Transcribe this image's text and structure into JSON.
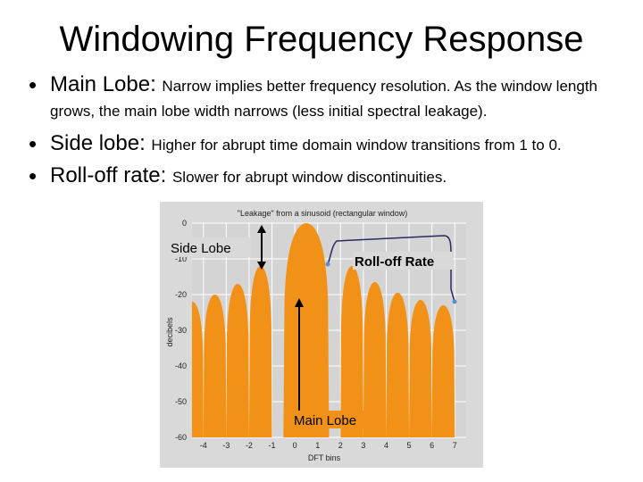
{
  "slide": {
    "title": "Windowing Frequency Response",
    "bullets": [
      {
        "term": "Main Lobe: ",
        "desc": "Narrow implies better frequency resolution. As the window length grows, the main lobe width narrows (less initial spectral leakage)."
      },
      {
        "term": "Side lobe: ",
        "desc": "Higher for abrupt time domain window transitions from 1 to 0."
      },
      {
        "term": "Roll-off rate: ",
        "desc": "Slower for abrupt window discontinuities."
      }
    ],
    "bullet_glyph": "•"
  },
  "chart_data": {
    "type": "area",
    "title": "\"Leakage\" from a sinusoid (rectangular window)",
    "xlabel": "DFT bins",
    "ylabel": "decibels",
    "xlim": [
      -4.5,
      7.5
    ],
    "ylim": [
      -60,
      0
    ],
    "xticks": [
      -4,
      -3,
      -2,
      -1,
      0,
      1,
      2,
      3,
      4,
      5,
      6,
      7
    ],
    "xtick_labels": [
      "-4",
      "-3",
      "-2",
      "-1",
      "0",
      "1",
      "2",
      "3",
      "4",
      "5",
      "6",
      "7"
    ],
    "yticks": [
      0,
      -10,
      -20,
      -30,
      -40,
      -50,
      -60
    ],
    "ytick_labels": [
      "0",
      "-10",
      "-20",
      "-30",
      "-40",
      "-50",
      "-60"
    ],
    "grid": true,
    "lobes": [
      {
        "center": -4.5,
        "peak": -22.0
      },
      {
        "center": -3.5,
        "peak": -20.0
      },
      {
        "center": -2.5,
        "peak": -17.0
      },
      {
        "center": -1.5,
        "peak": -12.0
      },
      {
        "center": 0.5,
        "peak": 0.0
      },
      {
        "center": 2.5,
        "peak": -12.0
      },
      {
        "center": 3.5,
        "peak": -16.5
      },
      {
        "center": 4.5,
        "peak": -19.5
      },
      {
        "center": 5.5,
        "peak": -21.5
      },
      {
        "center": 6.5,
        "peak": -23.0
      }
    ],
    "annotations": {
      "side_lobe": "Side Lobe",
      "roll_off": "Roll-off Rate",
      "main_lobe": "Main Lobe"
    },
    "colors": {
      "fill": "#f29117",
      "background": "#d4d4d4",
      "grid": "#ffffff",
      "annotation_line": "#000000",
      "roll_off_line": "#2a2a60",
      "roll_off_dot": "#5a8fc8"
    }
  }
}
